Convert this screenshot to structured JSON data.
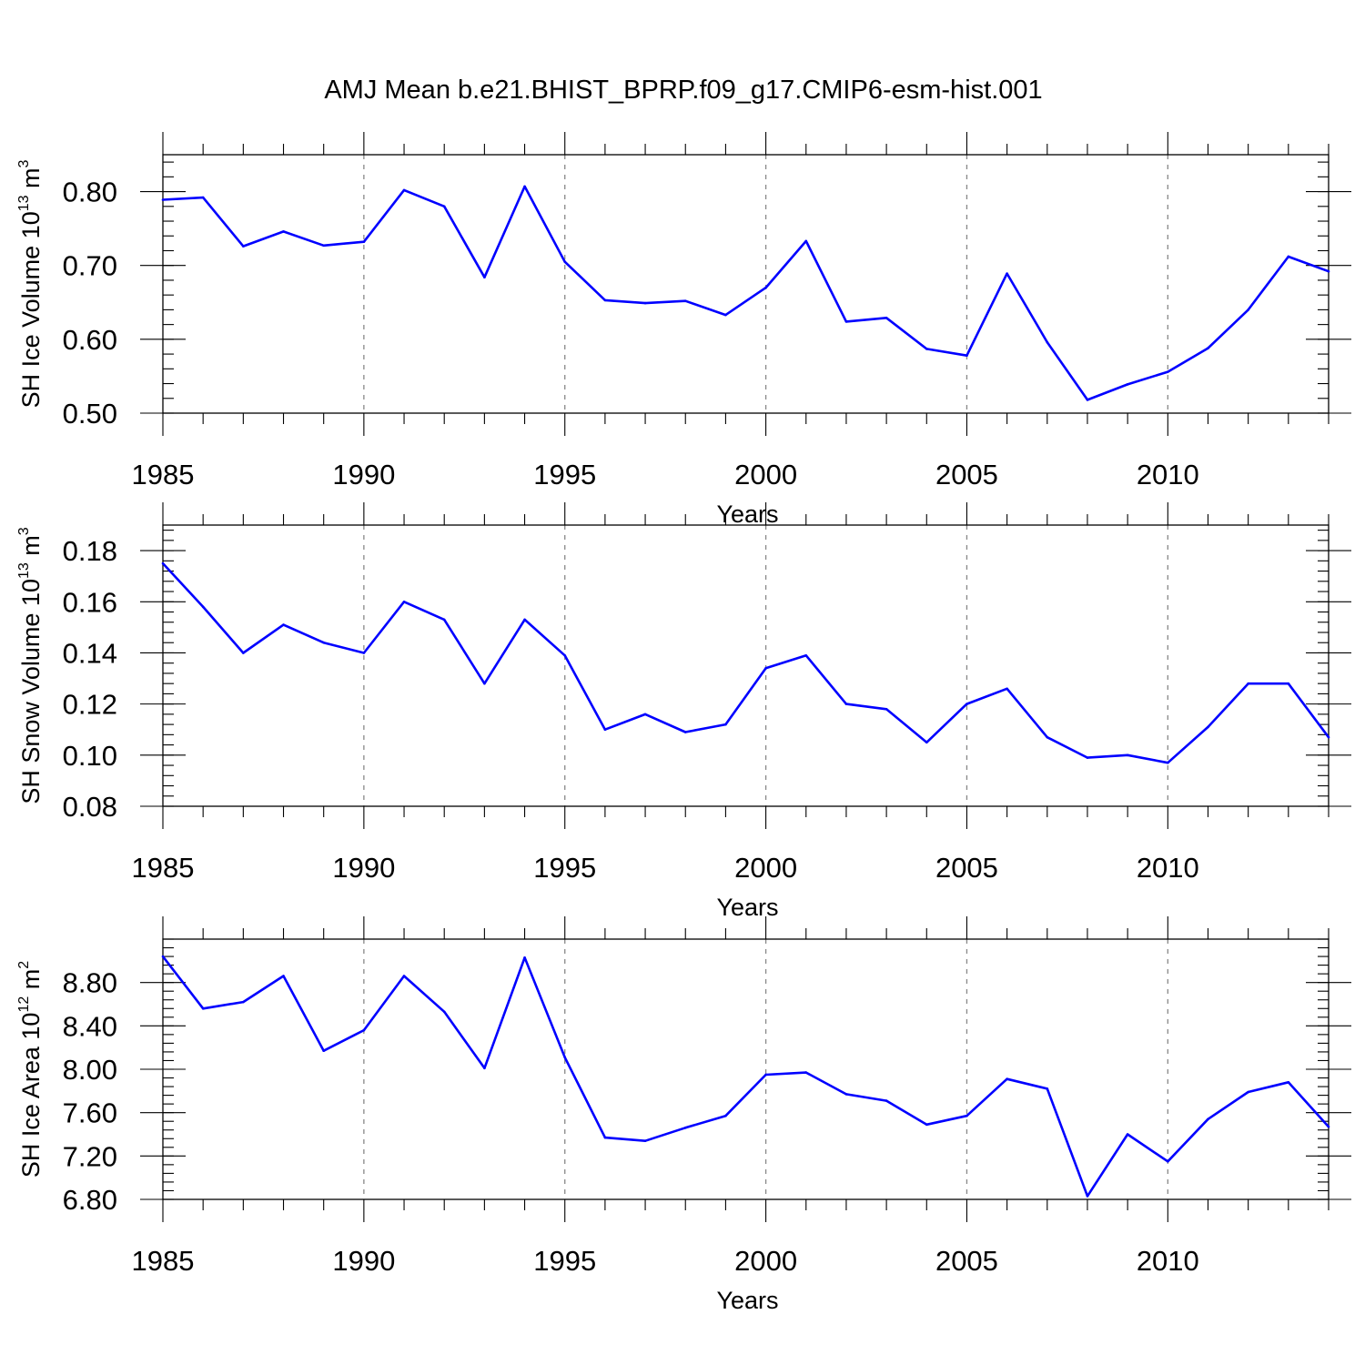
{
  "figure_title": "AMJ Mean b.e21.BHIST_BPRP.f09_g17.CMIP6-esm-hist.001",
  "colors": {
    "line": "#0000ff",
    "grid": "#888888"
  },
  "chart_data": [
    {
      "type": "line",
      "xlabel": "Years",
      "ylabel": {
        "prefix": "SH Ice Volume 10",
        "exp": "13",
        "unit": " m",
        "unit_exp": "3"
      },
      "xlim": [
        1985,
        2014
      ],
      "ylim": [
        0.5,
        0.85
      ],
      "x_major_ticks": [
        1985,
        1990,
        1995,
        2000,
        2005,
        2010
      ],
      "x_tick_labels": [
        "1985",
        "1990",
        "1995",
        "2000",
        "2005",
        "2010"
      ],
      "y_major_ticks": [
        0.5,
        0.6,
        0.7,
        0.8
      ],
      "y_tick_labels": [
        "0.50",
        "0.60",
        "0.70",
        "0.80"
      ],
      "y_minor_step": 0.02,
      "grid": "vertical dashed at major x ticks",
      "series": [
        {
          "name": "SH Ice Volume",
          "x": [
            1985,
            1986,
            1987,
            1988,
            1989,
            1990,
            1991,
            1992,
            1993,
            1994,
            1995,
            1996,
            1997,
            1998,
            1999,
            2000,
            2001,
            2002,
            2003,
            2004,
            2005,
            2006,
            2007,
            2008,
            2009,
            2010,
            2011,
            2012,
            2013,
            2014
          ],
          "values": [
            0.789,
            0.792,
            0.726,
            0.746,
            0.727,
            0.732,
            0.802,
            0.78,
            0.684,
            0.807,
            0.705,
            0.653,
            0.649,
            0.652,
            0.633,
            0.67,
            0.733,
            0.624,
            0.629,
            0.587,
            0.578,
            0.689,
            0.596,
            0.518,
            0.539,
            0.556,
            0.588,
            0.64,
            0.712,
            0.692
          ]
        }
      ]
    },
    {
      "type": "line",
      "xlabel": "Years",
      "ylabel": {
        "prefix": "SH Snow Volume 10",
        "exp": "13",
        "unit": " m",
        "unit_exp": "3"
      },
      "xlim": [
        1985,
        2014
      ],
      "ylim": [
        0.08,
        0.19
      ],
      "x_major_ticks": [
        1985,
        1990,
        1995,
        2000,
        2005,
        2010
      ],
      "x_tick_labels": [
        "1985",
        "1990",
        "1995",
        "2000",
        "2005",
        "2010"
      ],
      "y_major_ticks": [
        0.08,
        0.1,
        0.12,
        0.14,
        0.16,
        0.18
      ],
      "y_tick_labels": [
        "0.08",
        "0.10",
        "0.12",
        "0.14",
        "0.16",
        "0.18"
      ],
      "y_minor_step": 0.004,
      "grid": "vertical dashed at major x ticks",
      "series": [
        {
          "name": "SH Snow Volume",
          "x": [
            1985,
            1986,
            1987,
            1988,
            1989,
            1990,
            1991,
            1992,
            1993,
            1994,
            1995,
            1996,
            1997,
            1998,
            1999,
            2000,
            2001,
            2002,
            2003,
            2004,
            2005,
            2006,
            2007,
            2008,
            2009,
            2010,
            2011,
            2012,
            2013,
            2014
          ],
          "values": [
            0.175,
            0.158,
            0.14,
            0.151,
            0.144,
            0.14,
            0.16,
            0.153,
            0.128,
            0.153,
            0.139,
            0.11,
            0.116,
            0.109,
            0.112,
            0.134,
            0.139,
            0.12,
            0.118,
            0.105,
            0.12,
            0.126,
            0.107,
            0.099,
            0.1,
            0.097,
            0.111,
            0.128,
            0.128,
            0.107
          ]
        }
      ]
    },
    {
      "type": "line",
      "xlabel": "Years",
      "ylabel": {
        "prefix": "SH Ice Area 10",
        "exp": "12",
        "unit": " m",
        "unit_exp": "2"
      },
      "xlim": [
        1985,
        2014
      ],
      "ylim": [
        6.8,
        9.2
      ],
      "x_major_ticks": [
        1985,
        1990,
        1995,
        2000,
        2005,
        2010
      ],
      "x_tick_labels": [
        "1985",
        "1990",
        "1995",
        "2000",
        "2005",
        "2010"
      ],
      "y_major_ticks": [
        6.8,
        7.2,
        7.6,
        8.0,
        8.4,
        8.8
      ],
      "y_tick_labels": [
        "6.80",
        "7.20",
        "7.60",
        "8.00",
        "8.40",
        "8.80"
      ],
      "y_minor_step": 0.08,
      "grid": "vertical dashed at major x ticks",
      "series": [
        {
          "name": "SH Ice Area",
          "x": [
            1985,
            1986,
            1987,
            1988,
            1989,
            1990,
            1991,
            1992,
            1993,
            1994,
            1995,
            1996,
            1997,
            1998,
            1999,
            2000,
            2001,
            2002,
            2003,
            2004,
            2005,
            2006,
            2007,
            2008,
            2009,
            2010,
            2011,
            2012,
            2013,
            2014
          ],
          "values": [
            9.04,
            8.56,
            8.62,
            8.86,
            8.17,
            8.36,
            8.86,
            8.53,
            8.01,
            9.03,
            8.11,
            7.37,
            7.34,
            7.46,
            7.57,
            7.95,
            7.97,
            7.77,
            7.71,
            7.49,
            7.57,
            7.91,
            7.82,
            6.83,
            7.4,
            7.15,
            7.54,
            7.79,
            7.88,
            7.47
          ]
        }
      ]
    }
  ]
}
